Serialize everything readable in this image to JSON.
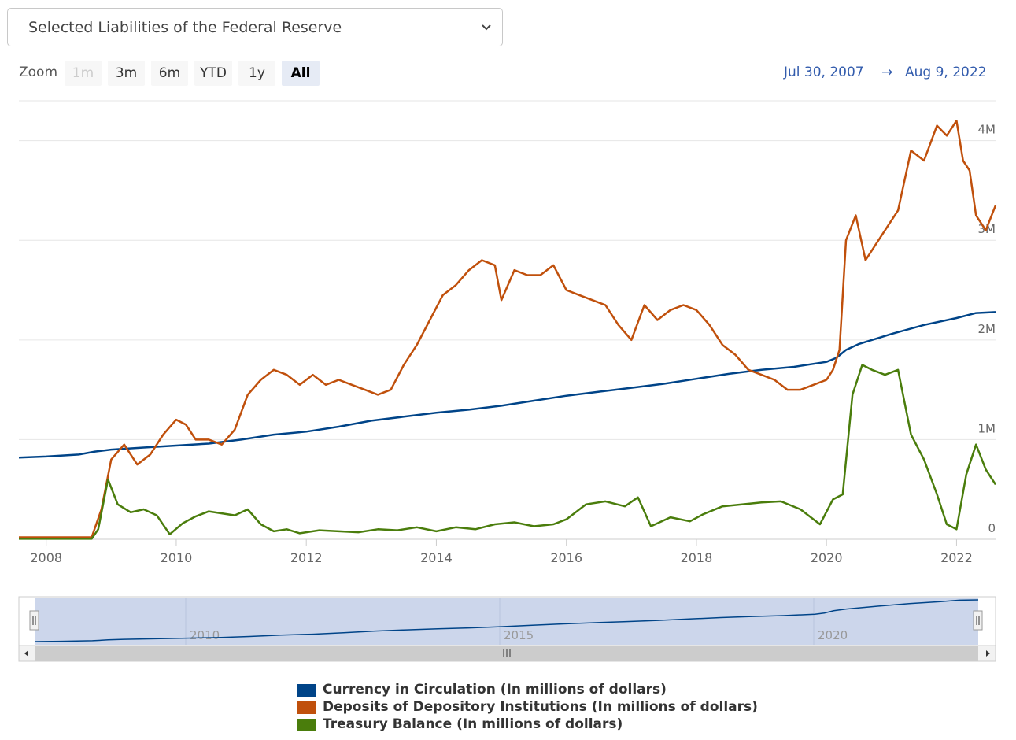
{
  "selector": {
    "value": "Selected Liabilities of the Federal Reserve"
  },
  "zoom": {
    "label": "Zoom",
    "buttons": [
      "1m",
      "3m",
      "6m",
      "YTD",
      "1y",
      "All"
    ],
    "active": "All",
    "disabled": [
      "1m"
    ]
  },
  "range": {
    "from": "Jul 30, 2007",
    "arrow": "→",
    "to": "Aug 9, 2022"
  },
  "navigator": {
    "labels": [
      "2010",
      "2015",
      "2020"
    ]
  },
  "chart_data": {
    "type": "line",
    "x_unit": "year",
    "xlim": [
      2007.58,
      2022.6
    ],
    "ylim": [
      0,
      4400000
    ],
    "x_ticks": [
      "2008",
      "2010",
      "2012",
      "2014",
      "2016",
      "2018",
      "2020",
      "2022"
    ],
    "y_ticks": [
      "0",
      "1M",
      "2M",
      "3M",
      "4M"
    ],
    "grid": true,
    "legend": "bottom",
    "series": [
      {
        "name": "Currency in Circulation (In millions of dollars)",
        "color": "#004488",
        "x": [
          2007.58,
          2008.0,
          2008.5,
          2008.75,
          2009.0,
          2009.5,
          2010.0,
          2010.5,
          2011.0,
          2011.5,
          2012.0,
          2012.5,
          2013.0,
          2013.5,
          2014.0,
          2014.5,
          2015.0,
          2015.5,
          2016.0,
          2016.5,
          2017.0,
          2017.5,
          2018.0,
          2018.5,
          2019.0,
          2019.5,
          2020.0,
          2020.15,
          2020.3,
          2020.5,
          2021.0,
          2021.5,
          2022.0,
          2022.3,
          2022.6
        ],
        "values": [
          820000,
          830000,
          850000,
          880000,
          900000,
          920000,
          940000,
          960000,
          1000000,
          1050000,
          1080000,
          1130000,
          1190000,
          1230000,
          1270000,
          1300000,
          1340000,
          1390000,
          1440000,
          1480000,
          1520000,
          1560000,
          1610000,
          1660000,
          1700000,
          1730000,
          1780000,
          1820000,
          1900000,
          1960000,
          2060000,
          2150000,
          2220000,
          2270000,
          2280000
        ]
      },
      {
        "name": "Deposits of Depository Institutions (In millions of dollars)",
        "color": "#c0500c",
        "x": [
          2007.58,
          2008.0,
          2008.5,
          2008.7,
          2008.85,
          2009.0,
          2009.2,
          2009.4,
          2009.6,
          2009.8,
          2010.0,
          2010.15,
          2010.3,
          2010.5,
          2010.7,
          2010.9,
          2011.1,
          2011.3,
          2011.5,
          2011.7,
          2011.9,
          2012.1,
          2012.3,
          2012.5,
          2012.7,
          2012.9,
          2013.1,
          2013.3,
          2013.5,
          2013.7,
          2013.9,
          2014.1,
          2014.3,
          2014.5,
          2014.7,
          2014.9,
          2015.0,
          2015.2,
          2015.4,
          2015.6,
          2015.8,
          2016.0,
          2016.2,
          2016.4,
          2016.6,
          2016.8,
          2017.0,
          2017.2,
          2017.4,
          2017.6,
          2017.8,
          2018.0,
          2018.2,
          2018.4,
          2018.6,
          2018.8,
          2019.0,
          2019.2,
          2019.4,
          2019.6,
          2019.8,
          2020.0,
          2020.1,
          2020.2,
          2020.3,
          2020.45,
          2020.6,
          2020.75,
          2020.9,
          2021.1,
          2021.3,
          2021.5,
          2021.7,
          2021.85,
          2022.0,
          2022.1,
          2022.2,
          2022.3,
          2022.45,
          2022.6
        ],
        "values": [
          20000,
          20000,
          20000,
          20000,
          300000,
          800000,
          950000,
          750000,
          850000,
          1050000,
          1200000,
          1150000,
          1000000,
          1000000,
          950000,
          1100000,
          1450000,
          1600000,
          1700000,
          1650000,
          1550000,
          1650000,
          1550000,
          1600000,
          1550000,
          1500000,
          1450000,
          1500000,
          1750000,
          1950000,
          2200000,
          2450000,
          2550000,
          2700000,
          2800000,
          2750000,
          2400000,
          2700000,
          2650000,
          2650000,
          2750000,
          2500000,
          2450000,
          2400000,
          2350000,
          2150000,
          2000000,
          2350000,
          2200000,
          2300000,
          2350000,
          2300000,
          2150000,
          1950000,
          1850000,
          1700000,
          1650000,
          1600000,
          1500000,
          1500000,
          1550000,
          1600000,
          1700000,
          1900000,
          3000000,
          3250000,
          2800000,
          2950000,
          3100000,
          3300000,
          3900000,
          3800000,
          4150000,
          4050000,
          4200000,
          3800000,
          3700000,
          3250000,
          3100000,
          3350000
        ]
      },
      {
        "name": "Treasury Balance (In millions of dollars)",
        "color": "#4a7d0c",
        "x": [
          2007.58,
          2008.0,
          2008.5,
          2008.7,
          2008.8,
          2008.95,
          2009.1,
          2009.3,
          2009.5,
          2009.7,
          2009.9,
          2010.1,
          2010.3,
          2010.5,
          2010.7,
          2010.9,
          2011.1,
          2011.3,
          2011.5,
          2011.7,
          2011.9,
          2012.2,
          2012.5,
          2012.8,
          2013.1,
          2013.4,
          2013.7,
          2014.0,
          2014.3,
          2014.6,
          2014.9,
          2015.2,
          2015.5,
          2015.8,
          2016.0,
          2016.3,
          2016.6,
          2016.9,
          2017.1,
          2017.3,
          2017.6,
          2017.9,
          2018.1,
          2018.4,
          2018.7,
          2019.0,
          2019.3,
          2019.6,
          2019.9,
          2020.1,
          2020.25,
          2020.4,
          2020.55,
          2020.7,
          2020.9,
          2021.1,
          2021.3,
          2021.5,
          2021.7,
          2021.85,
          2022.0,
          2022.15,
          2022.3,
          2022.45,
          2022.6
        ],
        "values": [
          5000,
          5000,
          5000,
          5000,
          100000,
          600000,
          350000,
          270000,
          300000,
          240000,
          50000,
          160000,
          230000,
          280000,
          260000,
          240000,
          300000,
          150000,
          80000,
          100000,
          60000,
          90000,
          80000,
          70000,
          100000,
          90000,
          120000,
          80000,
          120000,
          100000,
          150000,
          170000,
          130000,
          150000,
          200000,
          350000,
          380000,
          330000,
          420000,
          130000,
          220000,
          180000,
          250000,
          330000,
          350000,
          370000,
          380000,
          300000,
          150000,
          400000,
          450000,
          1450000,
          1750000,
          1700000,
          1650000,
          1700000,
          1050000,
          800000,
          450000,
          150000,
          100000,
          650000,
          950000,
          700000,
          550000
        ]
      }
    ]
  }
}
